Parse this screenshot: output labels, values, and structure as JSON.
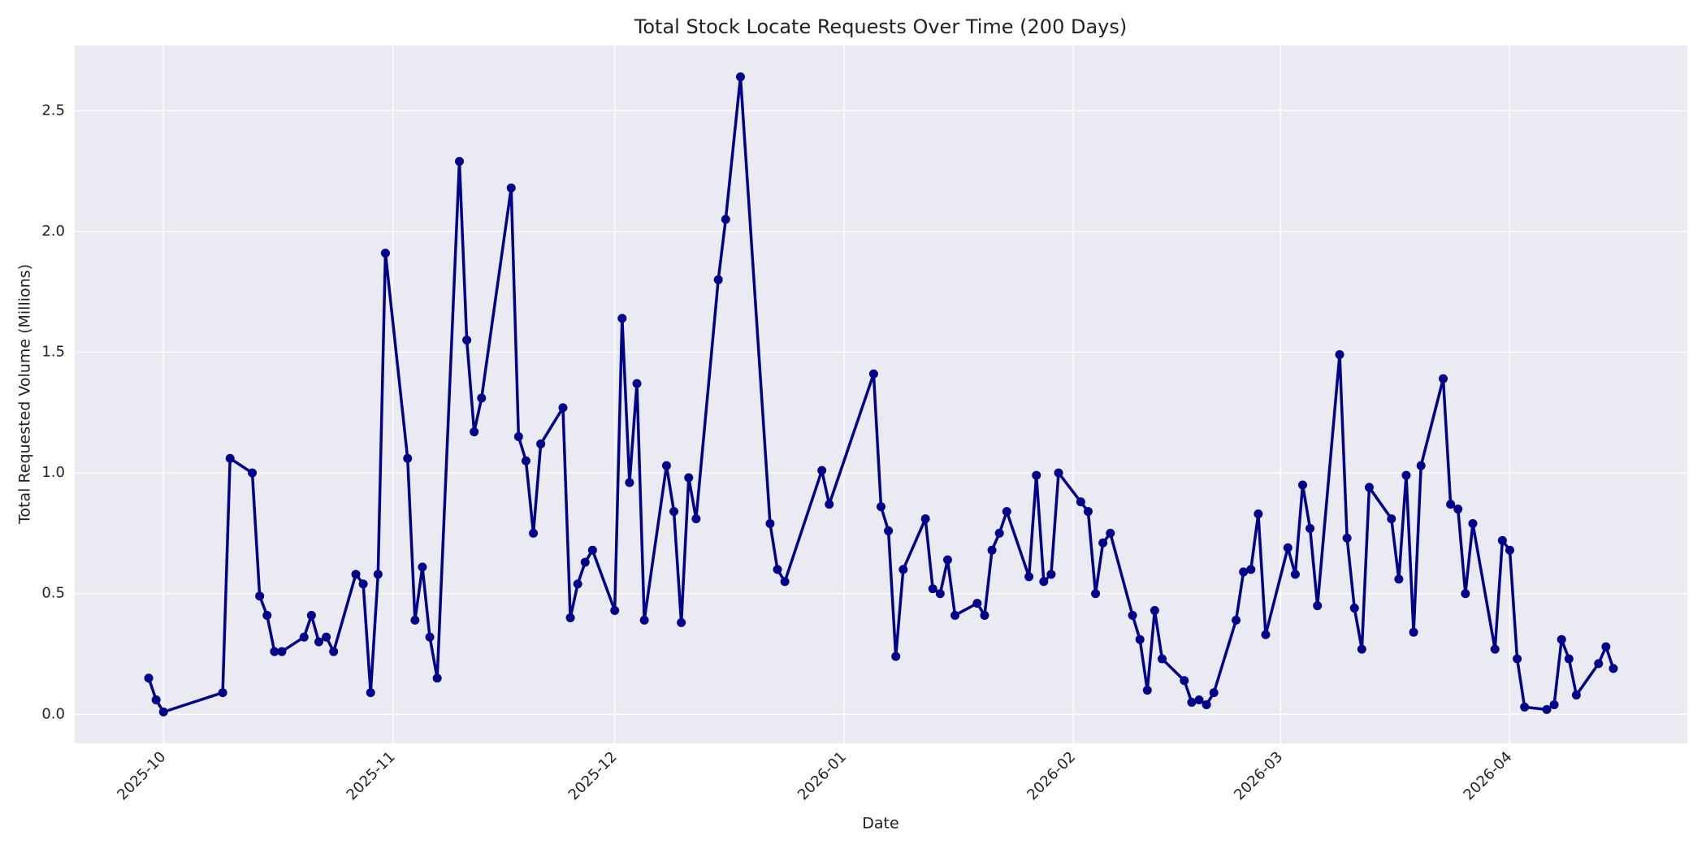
{
  "chart_data": {
    "type": "line",
    "title": "Total Stock Locate Requests Over Time (200 Days)",
    "xlabel": "Date",
    "ylabel": "Total Requested Volume (Millions)",
    "color": "#00008b",
    "grid": true,
    "x": [
      "2025-09-29",
      "2025-09-30",
      "2025-10-01",
      "2025-10-09",
      "2025-10-10",
      "2025-10-13",
      "2025-10-14",
      "2025-10-15",
      "2025-10-16",
      "2025-10-17",
      "2025-10-20",
      "2025-10-21",
      "2025-10-22",
      "2025-10-23",
      "2025-10-24",
      "2025-10-27",
      "2025-10-28",
      "2025-10-29",
      "2025-10-30",
      "2025-10-31",
      "2025-11-03",
      "2025-11-04",
      "2025-11-05",
      "2025-11-06",
      "2025-11-07",
      "2025-11-10",
      "2025-11-11",
      "2025-11-12",
      "2025-11-13",
      "2025-11-17",
      "2025-11-18",
      "2025-11-19",
      "2025-11-20",
      "2025-11-21",
      "2025-11-24",
      "2025-11-25",
      "2025-11-26",
      "2025-11-27",
      "2025-11-28",
      "2025-12-01",
      "2025-12-02",
      "2025-12-03",
      "2025-12-04",
      "2025-12-05",
      "2025-12-08",
      "2025-12-09",
      "2025-12-10",
      "2025-12-11",
      "2025-12-12",
      "2025-12-15",
      "2025-12-16",
      "2025-12-18",
      "2025-12-22",
      "2025-12-23",
      "2025-12-24",
      "2025-12-29",
      "2025-12-30",
      "2026-01-05",
      "2026-01-06",
      "2026-01-07",
      "2026-01-08",
      "2026-01-09",
      "2026-01-12",
      "2026-01-13",
      "2026-01-14",
      "2026-01-15",
      "2026-01-16",
      "2026-01-19",
      "2026-01-20",
      "2026-01-21",
      "2026-01-22",
      "2026-01-23",
      "2026-01-26",
      "2026-01-27",
      "2026-01-28",
      "2026-01-29",
      "2026-01-30",
      "2026-02-02",
      "2026-02-03",
      "2026-02-04",
      "2026-02-05",
      "2026-02-06",
      "2026-02-09",
      "2026-02-10",
      "2026-02-11",
      "2026-02-12",
      "2026-02-13",
      "2026-02-16",
      "2026-02-17",
      "2026-02-18",
      "2026-02-19",
      "2026-02-20",
      "2026-02-23",
      "2026-02-24",
      "2026-02-25",
      "2026-02-26",
      "2026-02-27",
      "2026-03-02",
      "2026-03-03",
      "2026-03-04",
      "2026-03-05",
      "2026-03-06",
      "2026-03-09",
      "2026-03-10",
      "2026-03-11",
      "2026-03-12",
      "2026-03-13",
      "2026-03-16",
      "2026-03-17",
      "2026-03-18",
      "2026-03-19",
      "2026-03-20",
      "2026-03-23",
      "2026-03-24",
      "2026-03-25",
      "2026-03-26",
      "2026-03-27",
      "2026-03-30",
      "2026-03-31",
      "2026-04-01",
      "2026-04-02",
      "2026-04-03",
      "2026-04-06",
      "2026-04-07",
      "2026-04-08",
      "2026-04-09",
      "2026-04-10",
      "2026-04-13",
      "2026-04-14",
      "2026-04-15"
    ],
    "values": [
      0.15,
      0.06,
      0.01,
      0.09,
      1.06,
      1.0,
      0.49,
      0.41,
      0.26,
      0.26,
      0.32,
      0.41,
      0.3,
      0.32,
      0.26,
      0.58,
      0.54,
      0.09,
      0.58,
      1.91,
      1.06,
      0.39,
      0.61,
      0.32,
      0.15,
      2.29,
      1.55,
      1.17,
      1.31,
      2.18,
      1.15,
      1.05,
      0.75,
      1.12,
      1.27,
      0.4,
      0.54,
      0.63,
      0.68,
      0.43,
      1.64,
      0.96,
      1.37,
      0.39,
      1.03,
      0.84,
      0.38,
      0.98,
      0.81,
      1.8,
      2.05,
      2.64,
      0.79,
      0.6,
      0.55,
      1.01,
      0.87,
      1.41,
      0.86,
      0.76,
      0.24,
      0.6,
      0.81,
      0.52,
      0.5,
      0.64,
      0.41,
      0.46,
      0.41,
      0.68,
      0.75,
      0.84,
      0.57,
      0.99,
      0.55,
      0.58,
      1.0,
      0.88,
      0.84,
      0.5,
      0.71,
      0.75,
      0.41,
      0.31,
      0.1,
      0.43,
      0.23,
      0.14,
      0.05,
      0.06,
      0.04,
      0.09,
      0.39,
      0.59,
      0.6,
      0.83,
      0.33,
      0.69,
      0.58,
      0.95,
      0.77,
      0.45,
      1.49,
      0.73,
      0.44,
      0.27,
      0.94,
      0.81,
      0.56,
      0.99,
      0.34,
      1.03,
      1.39,
      0.87,
      0.85,
      0.5,
      0.79,
      0.27,
      0.72,
      0.68,
      0.23,
      0.03,
      0.02,
      0.04,
      0.31,
      0.23,
      0.08,
      0.21,
      0.28,
      0.19
    ],
    "xlim": [
      "2025-09-19",
      "2026-04-25"
    ],
    "xticks": [
      {
        "value": "2025-10-01",
        "label": "2025-10"
      },
      {
        "value": "2025-11-01",
        "label": "2025-11"
      },
      {
        "value": "2025-12-01",
        "label": "2025-12"
      },
      {
        "value": "2026-01-01",
        "label": "2026-01"
      },
      {
        "value": "2026-02-01",
        "label": "2026-02"
      },
      {
        "value": "2026-03-01",
        "label": "2026-03"
      },
      {
        "value": "2026-04-01",
        "label": "2026-04"
      }
    ],
    "ylim": [
      -0.12,
      2.77
    ],
    "yticks": [
      {
        "value": 0,
        "label": "0.0"
      },
      0.5,
      {
        "value": 1,
        "label": "1.0"
      },
      1.5,
      {
        "value": 2,
        "label": "2.0"
      },
      2.5
    ]
  }
}
